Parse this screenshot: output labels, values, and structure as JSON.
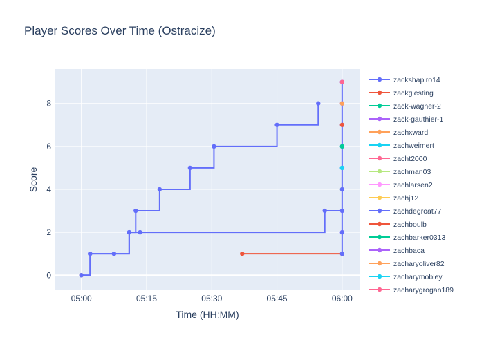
{
  "chart_data": {
    "type": "line",
    "title": "Player Scores Over Time (Ostracize)",
    "xlabel": "Time (HH:MM)",
    "ylabel": "Score",
    "x_unit": "minutes after 05:00",
    "xlim": [
      -6,
      64
    ],
    "ylim": [
      -0.7,
      9.6
    ],
    "x_ticks": [
      {
        "value": 0,
        "label": "05:00"
      },
      {
        "value": 15,
        "label": "05:15"
      },
      {
        "value": 30,
        "label": "05:30"
      },
      {
        "value": 45,
        "label": "05:45"
      },
      {
        "value": 60,
        "label": "06:00"
      }
    ],
    "y_ticks": [
      0,
      2,
      4,
      6,
      8
    ],
    "grid": true,
    "legend_position": "right",
    "line_shape": "hv",
    "series": [
      {
        "name": "zackshapiro14",
        "color": "#636efa",
        "points": [
          [
            0,
            0
          ],
          [
            2,
            1
          ],
          [
            7.5,
            1
          ],
          [
            11,
            2
          ],
          [
            12.5,
            3
          ],
          [
            18,
            4
          ],
          [
            25,
            5
          ],
          [
            30.5,
            6
          ],
          [
            45,
            7
          ],
          [
            54.5,
            8
          ]
        ]
      },
      {
        "name": "zackgiesting",
        "color": "#ef553b",
        "points": [
          [
            37,
            1
          ],
          [
            60,
            1
          ]
        ]
      },
      {
        "name": "zack-wagner-2",
        "color": "#00cc96",
        "points": [
          [
            60,
            6
          ]
        ]
      },
      {
        "name": "zack-gauthier-1",
        "color": "#ab63fa",
        "points": [
          [
            60,
            2
          ]
        ]
      },
      {
        "name": "zachxward",
        "color": "#ffa15a",
        "points": [
          [
            60,
            9
          ]
        ]
      },
      {
        "name": "zachweimert",
        "color": "#19d3f3",
        "points": [
          [
            60,
            5
          ]
        ]
      },
      {
        "name": "zacht2000",
        "color": "#ff6692",
        "points": [
          [
            60,
            8
          ]
        ]
      },
      {
        "name": "zachman03",
        "color": "#b6e880",
        "points": [
          [
            60,
            4
          ]
        ]
      },
      {
        "name": "zachlarsen2",
        "color": "#ff97ff",
        "points": [
          [
            60,
            3
          ]
        ]
      },
      {
        "name": "zachj12",
        "color": "#fecb52",
        "points": [
          [
            0,
            0
          ]
        ]
      },
      {
        "name": "zachdegroat77",
        "color": "#636efa",
        "points": [
          [
            0,
            0
          ],
          [
            2,
            1
          ],
          [
            7.5,
            1
          ],
          [
            11,
            2
          ],
          [
            13.5,
            2
          ],
          [
            56,
            3
          ],
          [
            60,
            1
          ],
          [
            60,
            2
          ],
          [
            60,
            3
          ],
          [
            60,
            4
          ],
          [
            60,
            5
          ],
          [
            60,
            6
          ],
          [
            60,
            7
          ],
          [
            60,
            8
          ],
          [
            60,
            9
          ]
        ]
      },
      {
        "name": "zachboulb",
        "color": "#ef553b",
        "points": [
          [
            60,
            7
          ]
        ]
      },
      {
        "name": "zachbarker0313",
        "color": "#00cc96",
        "points": [
          [
            60,
            6
          ]
        ]
      },
      {
        "name": "zachbaca",
        "color": "#ab63fa",
        "points": [
          [
            60,
            9
          ]
        ]
      },
      {
        "name": "zacharyoliver82",
        "color": "#ffa15a",
        "points": [
          [
            60,
            8
          ]
        ]
      },
      {
        "name": "zacharymobley",
        "color": "#19d3f3",
        "points": [
          [
            60,
            5
          ]
        ]
      },
      {
        "name": "zacharygrogan189",
        "color": "#ff6692",
        "points": [
          [
            60,
            9
          ]
        ]
      }
    ]
  }
}
